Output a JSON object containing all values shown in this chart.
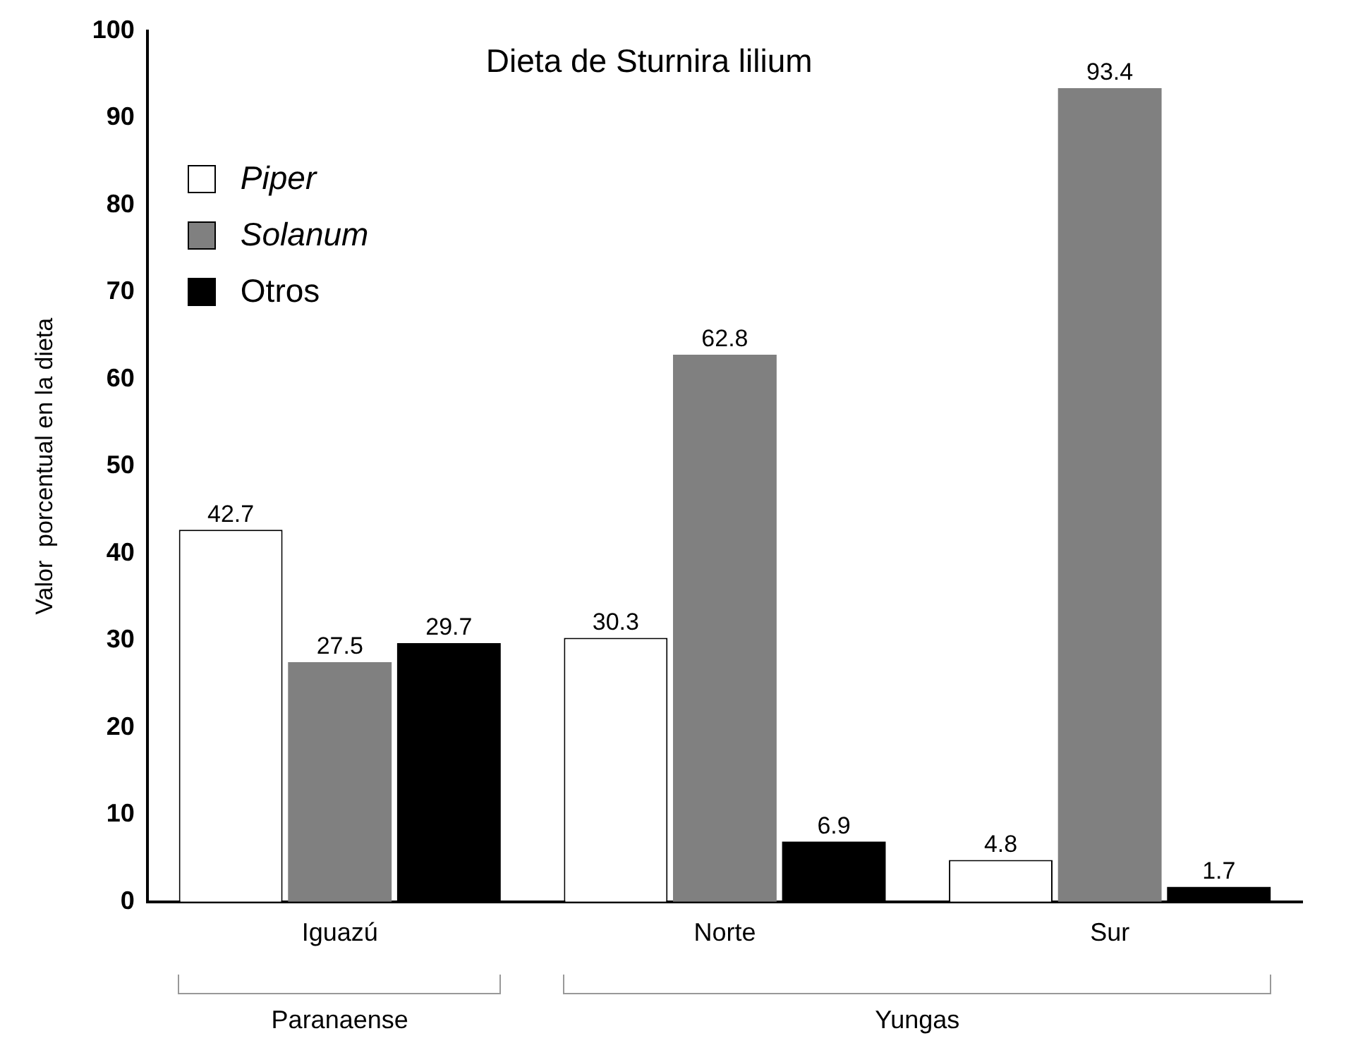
{
  "chart_data": {
    "type": "bar",
    "title": "Dieta de Sturnira lilium",
    "ylabel": "Valor  porcentual en la dieta",
    "categories": [
      "Iguazú",
      "Norte",
      "Sur"
    ],
    "series": [
      {
        "name": "Piper",
        "color": "#ffffff",
        "values": [
          42.7,
          30.3,
          4.8
        ]
      },
      {
        "name": "Solanum",
        "color": "#808080",
        "values": [
          27.5,
          62.8,
          93.4
        ]
      },
      {
        "name": "Otros",
        "color": "#000000",
        "values": [
          29.7,
          6.9,
          1.7
        ]
      }
    ],
    "ylim": [
      0,
      100
    ],
    "yticks": [
      0,
      10,
      20,
      30,
      40,
      50,
      60,
      70,
      80,
      90,
      100
    ],
    "annotations": [
      "Paranaense",
      "Yungas"
    ],
    "data_labels": true,
    "grid": false,
    "legend": "top left"
  }
}
